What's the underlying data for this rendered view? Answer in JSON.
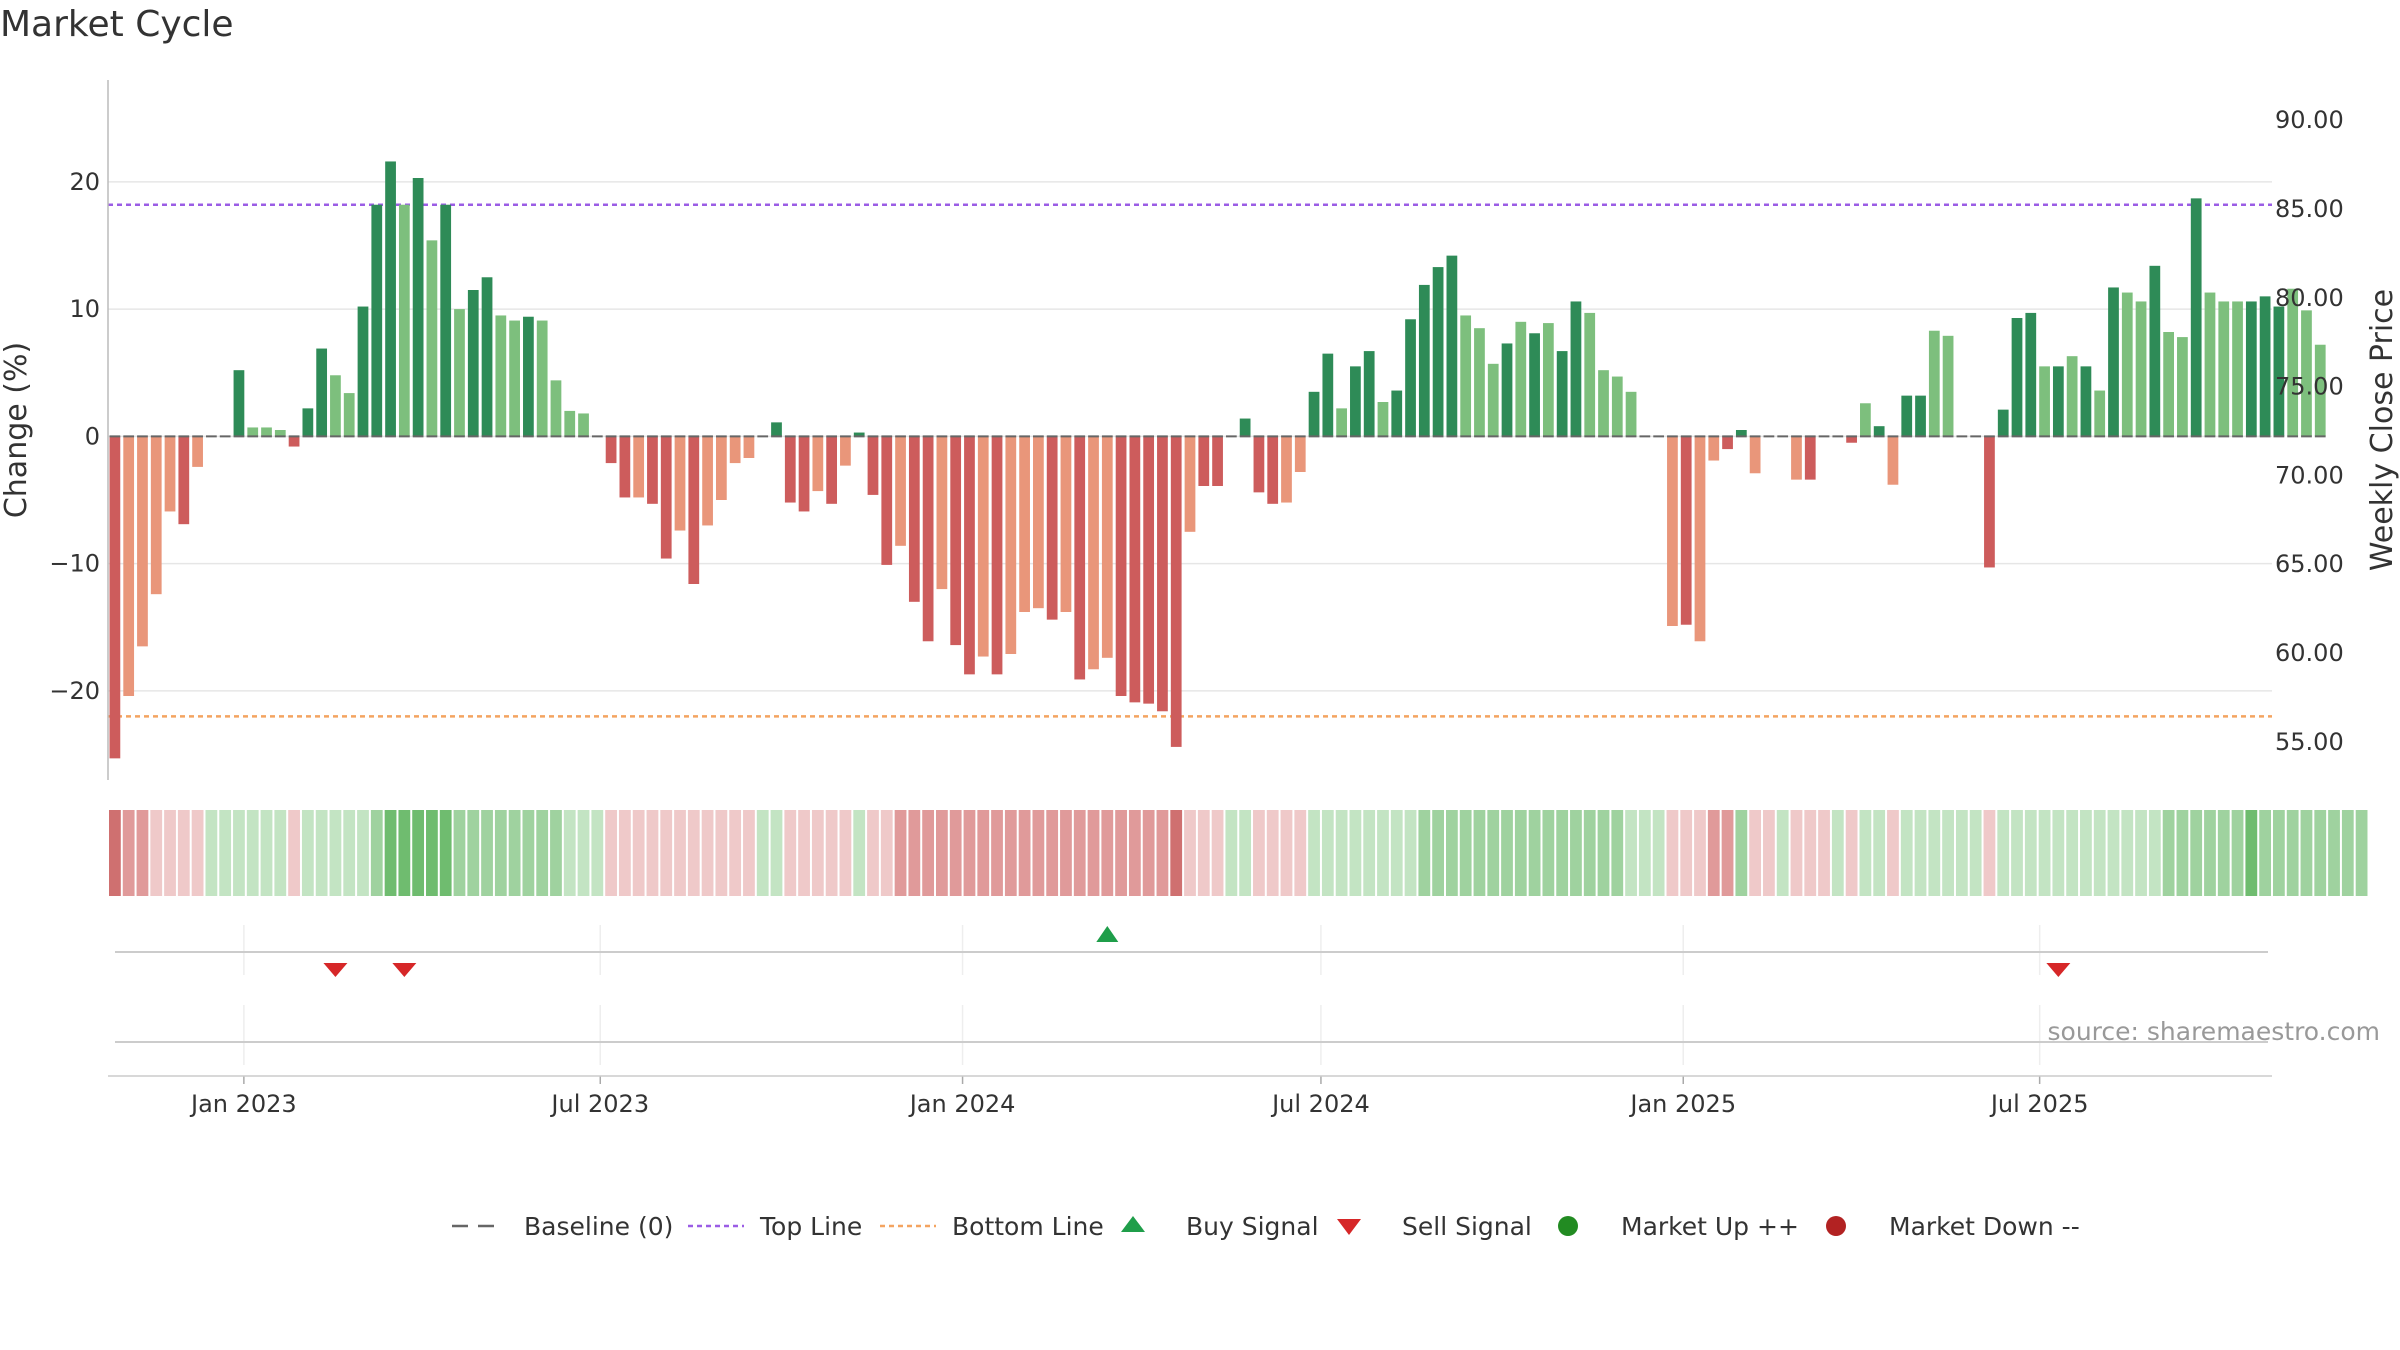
{
  "title": "Market Cycle",
  "source_note": "source: sharemaestro.com",
  "colors": {
    "up_strong": "#2e8b57",
    "up_light": "#7dbf7d",
    "down_strong": "#cd5c5c",
    "down_light": "#e9967a",
    "top_line": "#9b5de5",
    "bottom_line": "#f4a460",
    "buy": "#1f9e4a",
    "sell": "#d62728",
    "market_up": "#228b22",
    "market_down": "#b22222",
    "baseline": "#666666"
  },
  "chart_data": {
    "type": "bar",
    "title": "Market Cycle",
    "ylabel": "Change (%)",
    "y2label": "Weekly Close Price",
    "ylim": [
      -27,
      28
    ],
    "y2lim": [
      52.8,
      92.2
    ],
    "yticks": [
      -20,
      -10,
      0,
      10,
      20
    ],
    "y2ticks": [
      "55.00",
      "60.00",
      "65.00",
      "70.00",
      "75.00",
      "80.00",
      "85.00",
      "90.00"
    ],
    "xlim": [
      "2022-10-24",
      "2025-10-27"
    ],
    "xticks": [
      {
        "date": "2023-01-01",
        "label": "Jan 2023"
      },
      {
        "date": "2023-07-01",
        "label": "Jul 2023"
      },
      {
        "date": "2024-01-01",
        "label": "Jan 2024"
      },
      {
        "date": "2024-07-01",
        "label": "Jul 2024"
      },
      {
        "date": "2025-01-01",
        "label": "Jan 2025"
      },
      {
        "date": "2025-07-01",
        "label": "Jul 2025"
      }
    ],
    "start_date": "2022-10-24",
    "interval_days": 7,
    "top_line": 18.2,
    "bottom_line": -22.0,
    "values": [
      -25.3,
      -20.4,
      -16.5,
      -12.4,
      -5.9,
      -6.9,
      -2.4,
      0,
      0,
      5.2,
      0.7,
      0.7,
      0.5,
      -0.8,
      2.2,
      6.9,
      4.8,
      3.4,
      10.2,
      18.2,
      21.6,
      18.2,
      20.3,
      15.4,
      18.2,
      10.0,
      11.5,
      12.5,
      9.5,
      9.1,
      9.4,
      9.1,
      4.4,
      2.0,
      1.8,
      0,
      -2.1,
      -4.8,
      -4.8,
      -5.3,
      -9.6,
      -7.4,
      -11.6,
      -7.0,
      -5.0,
      -2.1,
      -1.7,
      0,
      1.1,
      -5.2,
      -5.9,
      -4.3,
      -5.3,
      -2.3,
      0.3,
      -4.6,
      -10.1,
      -8.6,
      -13.0,
      -16.1,
      -12.0,
      -16.4,
      -18.7,
      -17.3,
      -18.7,
      -17.1,
      -13.8,
      -13.5,
      -14.4,
      -13.8,
      -19.1,
      -18.3,
      -17.4,
      -20.4,
      -20.9,
      -21.0,
      -21.6,
      -24.4,
      -7.5,
      -3.9,
      -3.9,
      0,
      1.4,
      -4.4,
      -5.3,
      -5.2,
      -2.8,
      3.5,
      6.5,
      2.2,
      5.5,
      6.7,
      2.7,
      3.6,
      9.2,
      11.9,
      13.3,
      14.2,
      9.5,
      8.5,
      5.7,
      7.3,
      9.0,
      8.1,
      8.9,
      6.7,
      10.6,
      9.7,
      5.2,
      4.7,
      3.5,
      2.3,
      0,
      -14.9,
      -14.8,
      -16.1,
      -1.9,
      -1.0,
      0.5,
      -2.9,
      -1.5,
      0,
      -3.4,
      -3.4,
      -3.5,
      0,
      -0.5,
      2.6,
      0.8,
      -3.8,
      3.2,
      3.2,
      8.3,
      7.9,
      0,
      0,
      -10.3,
      2.1,
      9.3,
      9.7,
      5.5,
      5.5,
      6.3,
      5.5,
      3.6,
      11.7,
      11.3,
      10.6,
      13.4,
      8.2,
      7.8,
      18.7,
      11.3,
      10.6,
      10.6,
      10.6,
      11.0,
      10.2,
      11.6,
      9.9,
      7.2
    ],
    "shade": [
      "s",
      "l",
      "l",
      "l",
      "l",
      "s",
      "l",
      "n",
      "n",
      "s",
      "l",
      "l",
      "l",
      "s",
      "s",
      "s",
      "l",
      "l",
      "s",
      "s",
      "s",
      "l",
      "s",
      "l",
      "s",
      "l",
      "s",
      "s",
      "l",
      "l",
      "s",
      "l",
      "l",
      "l",
      "l",
      "n",
      "s",
      "s",
      "l",
      "s",
      "s",
      "l",
      "s",
      "l",
      "l",
      "l",
      "l",
      "n",
      "s",
      "s",
      "s",
      "l",
      "s",
      "l",
      "s",
      "s",
      "s",
      "l",
      "s",
      "s",
      "l",
      "s",
      "s",
      "l",
      "s",
      "l",
      "l",
      "l",
      "s",
      "l",
      "s",
      "l",
      "l",
      "s",
      "s",
      "s",
      "s",
      "s",
      "l",
      "s",
      "s",
      "n",
      "s",
      "s",
      "s",
      "l",
      "l",
      "s",
      "s",
      "l",
      "s",
      "s",
      "l",
      "s",
      "s",
      "s",
      "s",
      "s",
      "l",
      "l",
      "l",
      "s",
      "l",
      "s",
      "l",
      "s",
      "s",
      "l",
      "l",
      "l",
      "l",
      "n",
      "s",
      "l",
      "s",
      "l",
      "l",
      "s",
      "s",
      "l",
      "n",
      "s",
      "l",
      "s",
      "n",
      "s",
      "s",
      "l",
      "s",
      "l",
      "s",
      "s",
      "l",
      "l",
      "n",
      "n",
      "s",
      "s",
      "s",
      "s",
      "l",
      "s",
      "l",
      "s",
      "l",
      "s",
      "l",
      "l",
      "s",
      "l",
      "l",
      "s",
      "l",
      "l",
      "l",
      "s",
      "s",
      "s",
      "l",
      "l"
    ],
    "heat_strip": [
      3,
      2,
      2,
      1,
      1,
      1,
      1,
      1,
      1,
      1,
      1,
      1,
      1,
      1,
      1,
      1,
      1,
      1,
      1,
      2,
      3,
      3,
      3,
      3,
      3,
      2,
      2,
      2,
      2,
      2,
      2,
      2,
      2,
      1,
      1,
      1,
      1,
      1,
      1,
      1,
      1,
      1,
      1,
      1,
      1,
      1,
      1,
      1,
      1,
      1,
      1,
      1,
      1,
      1,
      1,
      1,
      1,
      2,
      2,
      2,
      2,
      2,
      2,
      2,
      2,
      2,
      2,
      2,
      2,
      2,
      2,
      2,
      2,
      2,
      2,
      2,
      2,
      3,
      1,
      1,
      1,
      1,
      1,
      1,
      1,
      1,
      1,
      1,
      1,
      1,
      1,
      1,
      1,
      1,
      1,
      2,
      2,
      2,
      2,
      2,
      2,
      2,
      2,
      2,
      2,
      2,
      2,
      2,
      2,
      2,
      1,
      1,
      1,
      1,
      1,
      1,
      2,
      2,
      2,
      1,
      1,
      1,
      1,
      1,
      1,
      1,
      1,
      1,
      1,
      1,
      1,
      1,
      1,
      1,
      1,
      1,
      1,
      1,
      1,
      1,
      1,
      1,
      1,
      1,
      1,
      1,
      1,
      1,
      1,
      2,
      2,
      2,
      2,
      2,
      2,
      3,
      2,
      2,
      2,
      2,
      2,
      2,
      2,
      2
    ],
    "buy_signals": [
      "2024-03-11"
    ],
    "sell_signals": [
      "2023-02-13",
      "2023-03-20",
      "2025-07-07"
    ],
    "legend": [
      {
        "key": "baseline",
        "label": "Baseline (0)"
      },
      {
        "key": "top",
        "label": "Top Line"
      },
      {
        "key": "bottom",
        "label": "Bottom Line"
      },
      {
        "key": "buy",
        "label": "Buy Signal"
      },
      {
        "key": "sell",
        "label": "Sell Signal"
      },
      {
        "key": "mup",
        "label": "Market Up ++"
      },
      {
        "key": "mdown",
        "label": "Market Down --"
      }
    ]
  }
}
